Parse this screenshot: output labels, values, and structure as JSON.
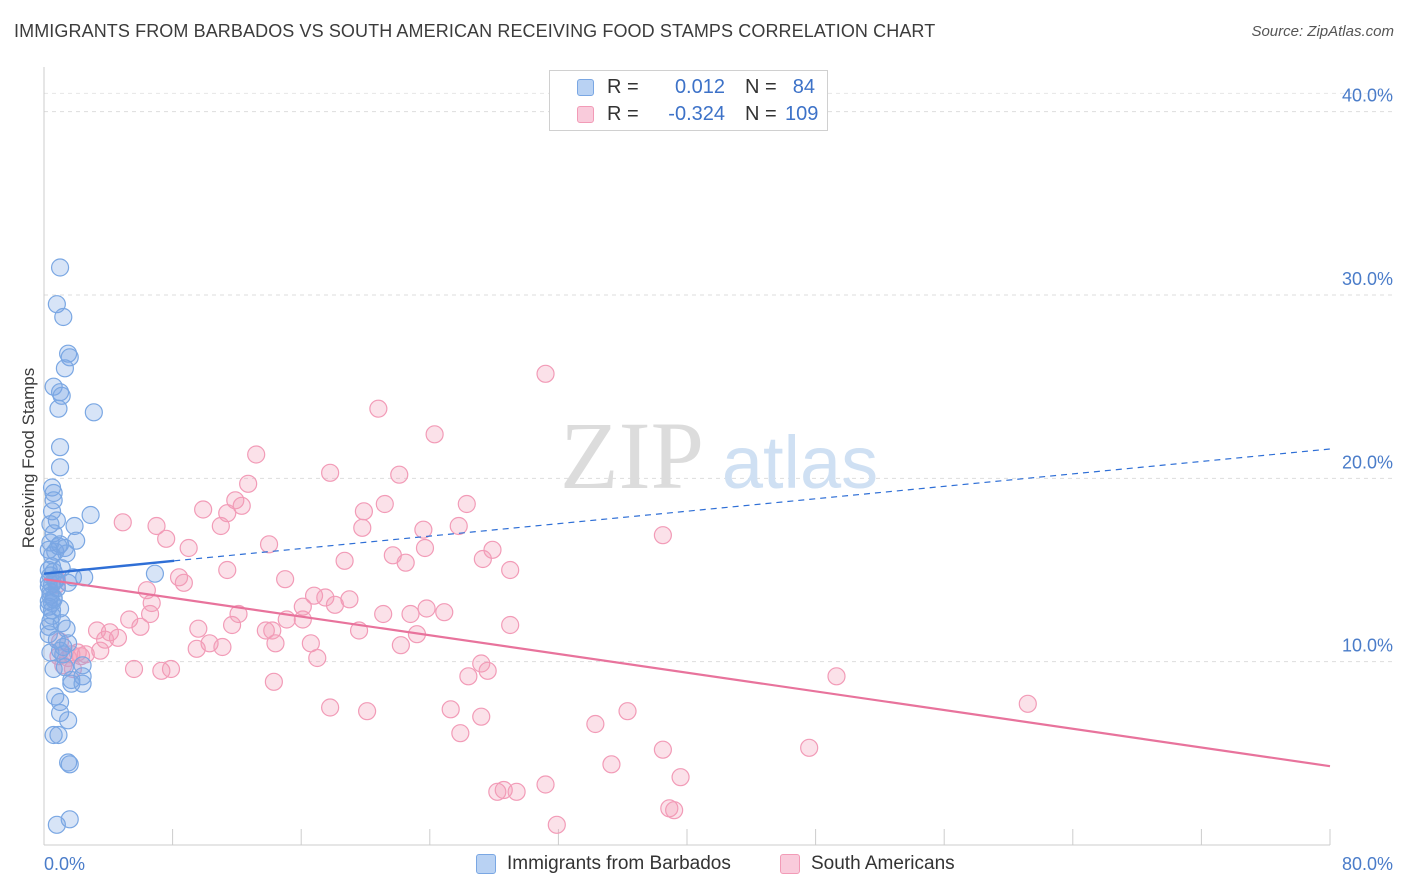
{
  "title": "IMMIGRANTS FROM BARBADOS VS SOUTH AMERICAN RECEIVING FOOD STAMPS CORRELATION CHART",
  "source": "Source: ZipAtlas.com",
  "watermark": {
    "zip": "ZIP",
    "atlas": "atlas"
  },
  "legend": {
    "rows": [
      {
        "r_label": "R =",
        "r_value": "0.012",
        "n_label": "N =",
        "n_value": "84"
      },
      {
        "r_label": "R =",
        "r_value": "-0.324",
        "n_label": "N =",
        "n_value": "109"
      }
    ]
  },
  "chart_data": {
    "type": "scatter",
    "title": "IMMIGRANTS FROM BARBADOS VS SOUTH AMERICAN RECEIVING FOOD STAMPS CORRELATION CHART",
    "xlabel": "",
    "ylabel": "Receiving Food Stamps",
    "xlim": [
      0,
      80
    ],
    "ylim": [
      0,
      42
    ],
    "x_tick_labels": [
      "0.0%",
      "80.0%"
    ],
    "y_ticks": [
      10,
      20,
      30,
      40
    ],
    "y_tick_labels": [
      "10.0%",
      "20.0%",
      "30.0%",
      "40.0%"
    ],
    "grid": true,
    "series": [
      {
        "name": "Immigrants from Barbados",
        "color": "#7aa7e3",
        "trend_color": "#2f6fd6",
        "trend": {
          "x": [
            0,
            8.1
          ],
          "y": [
            14.8,
            15.5
          ],
          "extended_to": 80,
          "extended_y": 21.6
        },
        "points": [
          [
            1.0,
            31.5
          ],
          [
            0.8,
            29.5
          ],
          [
            1.2,
            28.8
          ],
          [
            1.5,
            26.8
          ],
          [
            1.6,
            26.6
          ],
          [
            1.3,
            26.0
          ],
          [
            0.6,
            25.0
          ],
          [
            1.0,
            24.7
          ],
          [
            1.1,
            24.5
          ],
          [
            0.9,
            23.8
          ],
          [
            3.1,
            23.6
          ],
          [
            1.0,
            21.7
          ],
          [
            1.0,
            20.6
          ],
          [
            0.5,
            19.5
          ],
          [
            0.6,
            19.2
          ],
          [
            0.6,
            18.8
          ],
          [
            0.5,
            18.2
          ],
          [
            2.9,
            18.0
          ],
          [
            0.8,
            17.7
          ],
          [
            0.4,
            17.5
          ],
          [
            1.9,
            17.4
          ],
          [
            0.6,
            17.0
          ],
          [
            2.0,
            16.6
          ],
          [
            0.4,
            16.5
          ],
          [
            1.0,
            16.4
          ],
          [
            1.3,
            16.2
          ],
          [
            0.3,
            16.1
          ],
          [
            0.7,
            16.0
          ],
          [
            1.4,
            15.9
          ],
          [
            0.5,
            15.2
          ],
          [
            0.3,
            15.0
          ],
          [
            0.6,
            14.9
          ],
          [
            6.9,
            14.8
          ],
          [
            0.4,
            14.7
          ],
          [
            2.5,
            14.6
          ],
          [
            0.7,
            14.5
          ],
          [
            0.3,
            14.4
          ],
          [
            1.5,
            14.3
          ],
          [
            0.5,
            14.2
          ],
          [
            0.3,
            14.1
          ],
          [
            0.4,
            13.6
          ],
          [
            0.6,
            13.5
          ],
          [
            0.3,
            13.3
          ],
          [
            0.5,
            13.2
          ],
          [
            0.3,
            13.0
          ],
          [
            1.0,
            12.9
          ],
          [
            0.5,
            12.5
          ],
          [
            0.4,
            12.2
          ],
          [
            1.1,
            12.1
          ],
          [
            0.3,
            11.9
          ],
          [
            1.4,
            11.8
          ],
          [
            0.8,
            11.2
          ],
          [
            1.5,
            11.0
          ],
          [
            1.2,
            10.8
          ],
          [
            1.0,
            10.6
          ],
          [
            0.4,
            10.5
          ],
          [
            2.4,
            9.8
          ],
          [
            1.3,
            9.7
          ],
          [
            0.6,
            9.6
          ],
          [
            2.4,
            9.2
          ],
          [
            1.7,
            9.0
          ],
          [
            1.7,
            8.8
          ],
          [
            2.4,
            8.8
          ],
          [
            0.7,
            8.1
          ],
          [
            1.0,
            7.8
          ],
          [
            1.0,
            7.2
          ],
          [
            1.5,
            6.8
          ],
          [
            0.9,
            6.0
          ],
          [
            0.6,
            6.0
          ],
          [
            1.5,
            4.5
          ],
          [
            1.6,
            4.4
          ],
          [
            0.8,
            1.1
          ],
          [
            1.6,
            1.4
          ],
          [
            0.4,
            13.8
          ],
          [
            0.7,
            14.4
          ],
          [
            0.9,
            16.3
          ],
          [
            0.5,
            15.8
          ],
          [
            1.2,
            10.4
          ],
          [
            0.5,
            12.8
          ],
          [
            0.8,
            14.0
          ],
          [
            0.3,
            11.5
          ],
          [
            1.8,
            14.6
          ],
          [
            0.6,
            13.4
          ],
          [
            1.1,
            15.1
          ]
        ]
      },
      {
        "name": "South Americans",
        "color": "#f29bb7",
        "trend_color": "#e8739c",
        "trend": {
          "x": [
            0,
            80
          ],
          "y": [
            14.5,
            4.3
          ]
        },
        "points": [
          [
            31.2,
            25.7
          ],
          [
            20.8,
            23.8
          ],
          [
            24.3,
            22.4
          ],
          [
            13.2,
            21.3
          ],
          [
            17.8,
            20.3
          ],
          [
            22.1,
            20.2
          ],
          [
            12.7,
            19.7
          ],
          [
            11.9,
            18.8
          ],
          [
            26.3,
            18.6
          ],
          [
            21.2,
            18.6
          ],
          [
            12.3,
            18.5
          ],
          [
            9.9,
            18.3
          ],
          [
            19.9,
            18.2
          ],
          [
            11.4,
            18.1
          ],
          [
            4.9,
            17.6
          ],
          [
            7.0,
            17.4
          ],
          [
            11.0,
            17.4
          ],
          [
            19.8,
            17.3
          ],
          [
            23.6,
            17.2
          ],
          [
            25.8,
            17.4
          ],
          [
            38.5,
            16.9
          ],
          [
            7.6,
            16.7
          ],
          [
            14.0,
            16.4
          ],
          [
            27.9,
            16.1
          ],
          [
            9.0,
            16.2
          ],
          [
            23.7,
            16.2
          ],
          [
            21.7,
            15.8
          ],
          [
            27.3,
            15.6
          ],
          [
            18.7,
            15.5
          ],
          [
            22.5,
            15.4
          ],
          [
            29.0,
            15.0
          ],
          [
            11.4,
            15.0
          ],
          [
            8.4,
            14.6
          ],
          [
            15.0,
            14.5
          ],
          [
            8.7,
            14.3
          ],
          [
            0.8,
            14.2
          ],
          [
            6.4,
            13.9
          ],
          [
            16.8,
            13.6
          ],
          [
            17.5,
            13.5
          ],
          [
            19.0,
            13.4
          ],
          [
            16.1,
            13.0
          ],
          [
            18.1,
            13.1
          ],
          [
            23.8,
            12.9
          ],
          [
            24.9,
            12.7
          ],
          [
            12.1,
            12.6
          ],
          [
            6.6,
            12.6
          ],
          [
            21.1,
            12.6
          ],
          [
            22.8,
            12.6
          ],
          [
            5.3,
            12.3
          ],
          [
            15.1,
            12.3
          ],
          [
            16.1,
            12.3
          ],
          [
            29.0,
            12.0
          ],
          [
            11.7,
            12.0
          ],
          [
            6.0,
            11.9
          ],
          [
            9.6,
            11.8
          ],
          [
            3.3,
            11.7
          ],
          [
            4.1,
            11.6
          ],
          [
            13.8,
            11.7
          ],
          [
            14.2,
            11.7
          ],
          [
            19.6,
            11.7
          ],
          [
            23.2,
            11.5
          ],
          [
            4.6,
            11.3
          ],
          [
            3.8,
            11.2
          ],
          [
            10.3,
            11.0
          ],
          [
            14.4,
            11.0
          ],
          [
            16.6,
            11.0
          ],
          [
            22.2,
            10.9
          ],
          [
            11.1,
            10.8
          ],
          [
            9.5,
            10.7
          ],
          [
            3.5,
            10.6
          ],
          [
            2.1,
            10.5
          ],
          [
            0.9,
            10.3
          ],
          [
            1.7,
            10.4
          ],
          [
            2.3,
            10.3
          ],
          [
            17.0,
            10.2
          ],
          [
            1.5,
            10.2
          ],
          [
            1.2,
            9.8
          ],
          [
            27.2,
            9.9
          ],
          [
            5.6,
            9.6
          ],
          [
            7.3,
            9.5
          ],
          [
            7.9,
            9.6
          ],
          [
            27.6,
            9.5
          ],
          [
            26.4,
            9.2
          ],
          [
            49.3,
            9.2
          ],
          [
            14.3,
            8.9
          ],
          [
            61.2,
            7.7
          ],
          [
            17.8,
            7.5
          ],
          [
            25.3,
            7.4
          ],
          [
            20.1,
            7.3
          ],
          [
            27.2,
            7.0
          ],
          [
            36.3,
            7.3
          ],
          [
            34.3,
            6.6
          ],
          [
            25.9,
            6.1
          ],
          [
            47.6,
            5.3
          ],
          [
            38.5,
            5.2
          ],
          [
            35.3,
            4.4
          ],
          [
            39.6,
            3.7
          ],
          [
            31.2,
            3.3
          ],
          [
            29.4,
            2.9
          ],
          [
            28.6,
            3.0
          ],
          [
            28.2,
            2.9
          ],
          [
            38.9,
            2.0
          ],
          [
            39.2,
            1.9
          ],
          [
            31.9,
            1.1
          ],
          [
            1.0,
            11.1
          ],
          [
            2.6,
            10.4
          ],
          [
            0.8,
            14.5
          ],
          [
            6.7,
            13.2
          ],
          [
            1.8,
            9.6
          ]
        ]
      }
    ]
  }
}
